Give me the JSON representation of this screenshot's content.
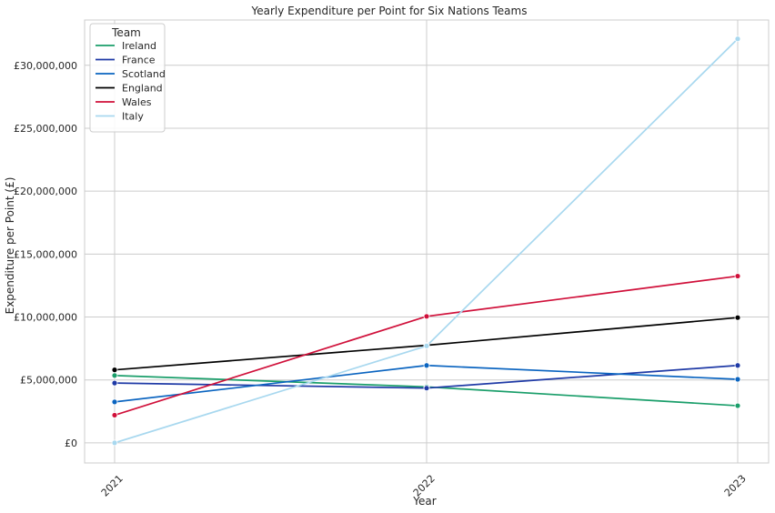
{
  "chart_data": {
    "type": "line",
    "title": "Yearly Expenditure per Point for Six Nations Teams",
    "xlabel": "Year",
    "ylabel": "Expenditure per Point (£)",
    "categories": [
      "2021",
      "2022",
      "2023"
    ],
    "y_ticks": [
      0,
      5000000,
      10000000,
      15000000,
      20000000,
      25000000,
      30000000
    ],
    "y_tick_labels": [
      "£0",
      "£5,000,000",
      "£10,000,000",
      "£15,000,000",
      "£20,000,000",
      "£25,000,000",
      "£30,000,000"
    ],
    "ylim": [
      -1600000,
      33600000
    ],
    "grid": true,
    "legend": {
      "title": "Team",
      "placement": "top-left"
    },
    "series": [
      {
        "name": "Ireland",
        "color": "#1a9e6a",
        "values": [
          5350000,
          4450000,
          2950000
        ]
      },
      {
        "name": "France",
        "color": "#1f3aa6",
        "values": [
          4750000,
          4350000,
          6150000
        ]
      },
      {
        "name": "Scotland",
        "color": "#0a64c0",
        "values": [
          3250000,
          6150000,
          5050000
        ]
      },
      {
        "name": "England",
        "color": "#000000",
        "values": [
          5800000,
          7750000,
          9950000
        ]
      },
      {
        "name": "Wales",
        "color": "#d0103a",
        "values": [
          2200000,
          10050000,
          13250000
        ]
      },
      {
        "name": "Italy",
        "color": "#a8d8ef",
        "values": [
          0,
          7700000,
          32100000
        ]
      }
    ]
  }
}
